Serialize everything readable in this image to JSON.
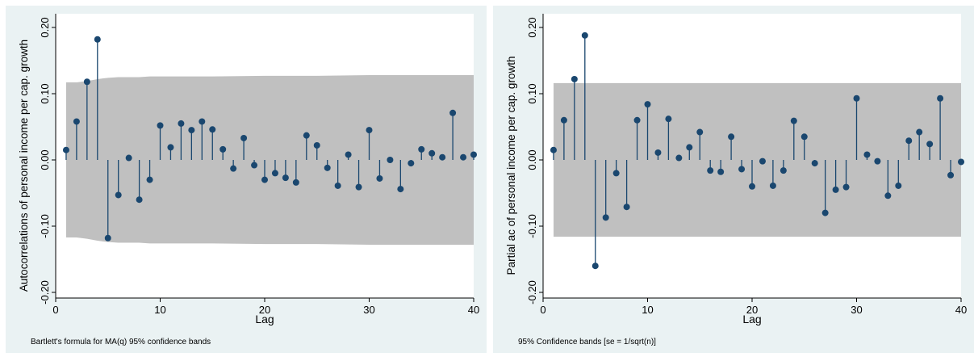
{
  "chart_data": [
    {
      "type": "stem",
      "ylabel": "Autocorrelations of personal income per cap. growth",
      "xlabel": "Lag",
      "note": "Bartlett's formula for MA(q) 95% confidence bands",
      "xlim": [
        0,
        40
      ],
      "ylim": [
        -0.2,
        0.2
      ],
      "xticks": [
        0,
        10,
        20,
        30,
        40
      ],
      "xtick_labels": [
        "0",
        "10",
        "20",
        "30",
        "40"
      ],
      "yticks": [
        -0.2,
        -0.1,
        0,
        0.1,
        0.2
      ],
      "ytick_labels": [
        "-0.20",
        "-0.10",
        "0.00",
        "0.10",
        "0.20"
      ],
      "lags": [
        1,
        2,
        3,
        4,
        5,
        6,
        7,
        8,
        9,
        10,
        11,
        12,
        13,
        14,
        15,
        16,
        17,
        18,
        19,
        20,
        21,
        22,
        23,
        24,
        25,
        26,
        27,
        28,
        29,
        30,
        31,
        32,
        33,
        34,
        35,
        36,
        37,
        38,
        39,
        40
      ],
      "values": [
        0.015,
        0.058,
        0.118,
        0.182,
        -0.118,
        -0.053,
        0.003,
        -0.06,
        -0.03,
        0.052,
        0.019,
        0.055,
        0.045,
        0.058,
        0.046,
        0.016,
        -0.013,
        0.033,
        -0.008,
        -0.03,
        -0.02,
        -0.027,
        -0.034,
        0.037,
        0.022,
        -0.012,
        -0.039,
        0.008,
        -0.041,
        0.045,
        -0.028,
        0.0,
        -0.044,
        -0.005,
        0.016,
        0.01,
        0.004,
        0.071,
        0.004,
        0.008
      ],
      "band_lags": [
        1,
        2,
        3,
        4,
        5,
        6,
        7,
        8,
        9,
        10,
        15,
        20,
        25,
        30,
        35,
        40
      ],
      "band_upper": [
        0.117,
        0.117,
        0.119,
        0.122,
        0.124,
        0.125,
        0.125,
        0.125,
        0.126,
        0.126,
        0.126,
        0.127,
        0.127,
        0.128,
        0.128,
        0.128
      ],
      "colors": {
        "band": "#c0c0c0",
        "stem": "#1a476f",
        "marker": "#1a476f",
        "plot_bg": "#ffffff",
        "outer_bg": "#eaf2f3"
      }
    },
    {
      "type": "stem",
      "ylabel": "Partial ac of personal income per cap. growth",
      "xlabel": "Lag",
      "note": "95% Confidence bands [se = 1/sqrt(n)]",
      "xlim": [
        0,
        40
      ],
      "ylim": [
        -0.2,
        0.2
      ],
      "xticks": [
        0,
        10,
        20,
        30,
        40
      ],
      "xtick_labels": [
        "0",
        "10",
        "20",
        "30",
        "40"
      ],
      "yticks": [
        -0.2,
        -0.1,
        0,
        0.1,
        0.2
      ],
      "ytick_labels": [
        "-0.20",
        "-0.10",
        "0.00",
        "0.10",
        "0.20"
      ],
      "lags": [
        1,
        2,
        3,
        4,
        5,
        6,
        7,
        8,
        9,
        10,
        11,
        12,
        13,
        14,
        15,
        16,
        17,
        18,
        19,
        20,
        21,
        22,
        23,
        24,
        25,
        26,
        27,
        28,
        29,
        30,
        31,
        32,
        33,
        34,
        35,
        36,
        37,
        38,
        39,
        40
      ],
      "values": [
        0.015,
        0.06,
        0.122,
        0.188,
        -0.16,
        -0.087,
        -0.02,
        -0.071,
        0.06,
        0.084,
        0.011,
        0.062,
        0.003,
        0.019,
        0.042,
        -0.016,
        -0.018,
        0.035,
        -0.014,
        -0.04,
        -0.002,
        -0.039,
        -0.016,
        0.059,
        0.035,
        -0.005,
        -0.08,
        -0.045,
        -0.041,
        0.093,
        0.008,
        -0.002,
        -0.054,
        -0.039,
        0.029,
        0.042,
        0.024,
        0.093,
        -0.023,
        -0.003
      ],
      "band": 0.116,
      "colors": {
        "band": "#c0c0c0",
        "stem": "#1a476f",
        "marker": "#1a476f",
        "plot_bg": "#ffffff",
        "outer_bg": "#eaf2f3"
      }
    }
  ]
}
